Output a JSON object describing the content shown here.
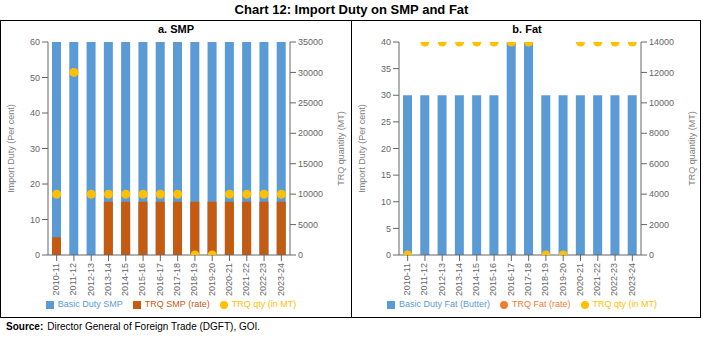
{
  "title": "Chart 12: Import Duty on SMP and Fat",
  "annotations": [
    "Source:",
    "Director General of Foreign Trade (DGFT), GOI."
  ],
  "chart_data": [
    {
      "type": "bar",
      "title": "a. SMP",
      "categories": [
        "2010-11",
        "2011-12",
        "2012-13",
        "2013-14",
        "2014-15",
        "2015-16",
        "2016-17",
        "2017-18",
        "2018-19",
        "2019-20",
        "2020-21",
        "2021-22",
        "2022-23",
        "2023-24"
      ],
      "series": [
        {
          "name": "Basic Duty SMP",
          "type": "bar",
          "color": "#5B9BD5",
          "values": [
            60,
            60,
            60,
            60,
            60,
            60,
            60,
            60,
            60,
            60,
            60,
            60,
            60,
            60
          ]
        },
        {
          "name": "TRQ SMP (rate)",
          "type": "bar",
          "color": "#C55A11",
          "values": [
            5,
            0,
            0,
            15,
            15,
            15,
            15,
            15,
            15,
            15,
            15,
            15,
            15,
            15
          ]
        },
        {
          "name": "TRQ qty (in MT)",
          "type": "scatter",
          "axis": "y2",
          "marker": "circle",
          "color": "#FFC000",
          "values": [
            10000,
            30000,
            10000,
            10000,
            10000,
            10000,
            10000,
            10000,
            0,
            0,
            10000,
            10000,
            10000,
            10000
          ]
        }
      ],
      "ylabel": "Import Duty (Per cent)",
      "y2label": "TRQ quantity (MT)",
      "ylim": [
        0,
        60
      ],
      "yticks": [
        0,
        10,
        20,
        30,
        40,
        50,
        60
      ],
      "y2lim": [
        0,
        35000
      ],
      "y2ticks": [
        0,
        5000,
        10000,
        15000,
        20000,
        25000,
        30000,
        35000
      ],
      "grid": false,
      "legend": "bottom"
    },
    {
      "type": "bar",
      "title": "b. Fat",
      "categories": [
        "2010-11",
        "2011-12",
        "2012-13",
        "2013-14",
        "2014-15",
        "2015-16",
        "2016-17",
        "2017-18",
        "2018-19",
        "2019-20",
        "2020-21",
        "2021-22",
        "2022-23",
        "2023-24"
      ],
      "series": [
        {
          "name": "Basic Duty Fat (Butter)",
          "type": "bar",
          "color": "#5B9BD5",
          "values": [
            30,
            30,
            30,
            30,
            30,
            30,
            40,
            40,
            30,
            30,
            30,
            30,
            30,
            30
          ]
        },
        {
          "name": "TRQ Fat (rate)",
          "type": "bar",
          "marker": "circle",
          "color": "#ED7D31",
          "values": [
            0,
            0,
            0,
            0,
            0,
            0,
            0,
            0,
            0,
            0,
            0,
            0,
            0,
            0
          ]
        },
        {
          "name": "TRQ qty (in MT)",
          "type": "scatter",
          "axis": "y2",
          "marker": "circle",
          "color": "#FFC000",
          "values": [
            0,
            14000,
            14000,
            14000,
            14000,
            14000,
            14000,
            14000,
            0,
            0,
            14000,
            14000,
            14000,
            14000
          ]
        }
      ],
      "ylabel": "Import Duty (Per cent)",
      "y2label": "TRQ quantity (MT)",
      "ylim": [
        0,
        40
      ],
      "yticks": [
        0,
        5,
        10,
        15,
        20,
        25,
        30,
        35,
        40
      ],
      "y2lim": [
        0,
        14000
      ],
      "y2ticks": [
        0,
        2000,
        4000,
        6000,
        8000,
        10000,
        12000,
        14000
      ],
      "grid": false,
      "legend": "bottom"
    }
  ]
}
